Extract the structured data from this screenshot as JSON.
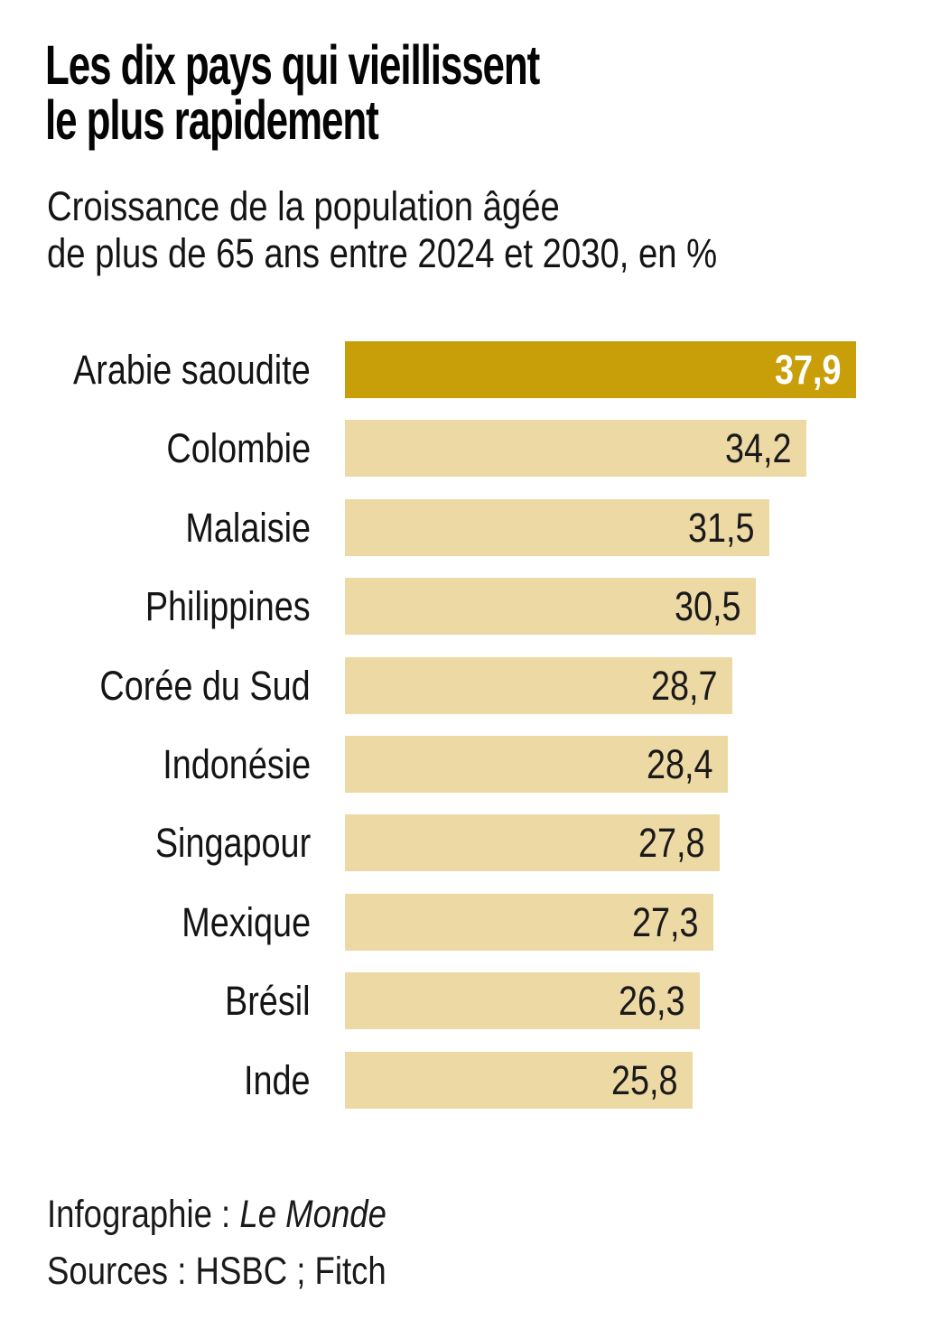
{
  "title": {
    "line1": "Les dix pays qui vieillissent",
    "line2": "le plus rapidement"
  },
  "subtitle": {
    "line1": "Croissance de la population âgée",
    "line2": "de plus de 65 ans entre 2024 et 2030, en %"
  },
  "chart_data": {
    "type": "bar",
    "orientation": "horizontal",
    "title": "Les dix pays qui vieillissent le plus rapidement",
    "subtitle": "Croissance de la population âgée de plus de 65 ans entre 2024 et 2030, en %",
    "categories": [
      "Arabie saoudite",
      "Colombie",
      "Malaisie",
      "Philippines",
      "Corée du Sud",
      "Indonésie",
      "Singapour",
      "Mexique",
      "Brésil",
      "Inde"
    ],
    "values": [
      37.9,
      34.2,
      31.5,
      30.5,
      28.7,
      28.4,
      27.8,
      27.3,
      26.3,
      25.8
    ],
    "value_labels": [
      "37,9",
      "34,2",
      "31,5",
      "30,5",
      "28,7",
      "28,4",
      "27,8",
      "27,3",
      "26,3",
      "25,8"
    ],
    "xlabel": "",
    "ylabel": "",
    "xlim": [
      0,
      37.9
    ],
    "grid": false,
    "legend": null,
    "highlight_index": 0,
    "colors": {
      "highlight_bar": "#C89F08",
      "default_bar": "#EDD9A4",
      "value_on_highlight": "#FFFFFF",
      "value_default": "#1A1A1A"
    }
  },
  "footer": {
    "line1_label": "Infographie : ",
    "line1_credit": "Le Monde",
    "line2": "Sources : HSBC ; Fitch"
  }
}
